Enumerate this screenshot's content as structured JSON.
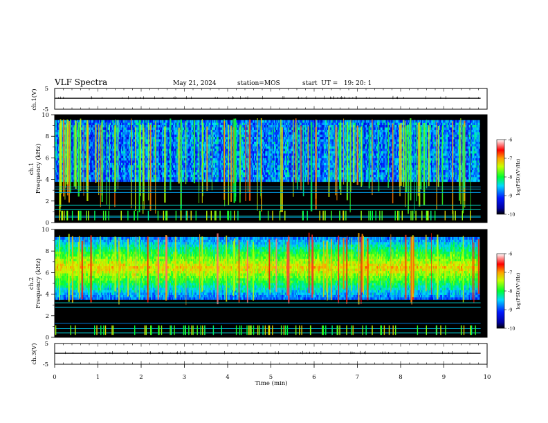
{
  "header": {
    "title": "VLF Spectra",
    "date": "May 21, 2024",
    "station": "station=MOS",
    "start_ut": "start  UT =   19: 20: 1"
  },
  "colors": {
    "background": "#ffffff",
    "spectrogram_floor": "#000000",
    "trace": "#000000"
  },
  "chart_data": [
    {
      "type": "line",
      "panel": "ch1-waveform",
      "ylabel": "ch.1(V)",
      "ylim": [
        -5,
        5
      ],
      "y_ticks": [
        "5",
        "-5"
      ],
      "xlim": [
        0,
        10
      ],
      "series": [
        {
          "values_approx": 0
        }
      ]
    },
    {
      "type": "heatmap",
      "panel": "ch1-spectrogram",
      "ylabel_top": "ch.1",
      "ylabel": "Frequency (kHz)",
      "ylim": [
        0,
        10
      ],
      "y_ticks": [
        "0",
        "2",
        "4",
        "6",
        "8",
        "10"
      ],
      "xlim": [
        0,
        10
      ],
      "data_end_min": 9.85,
      "band_khz": [
        3.8,
        9.5
      ],
      "sferic_density": "high",
      "narrowband_lines_khz": [
        0.5,
        0.6,
        1.2,
        1.6,
        2.8,
        3.1,
        3.3
      ],
      "colorbar": {
        "label": "log(PSD)(V²/Hz)",
        "range": [
          -10,
          -6
        ],
        "ticks": [
          "-6",
          "-7",
          "-8",
          "-9",
          "-10"
        ]
      }
    },
    {
      "type": "heatmap",
      "panel": "ch2-spectrogram",
      "ylabel_top": "ch.2",
      "ylabel": "Frequency (kHz)",
      "ylim": [
        0,
        10
      ],
      "y_ticks": [
        "0",
        "2",
        "4",
        "6",
        "8",
        "10"
      ],
      "xlim": [
        0,
        10
      ],
      "data_end_min": 9.85,
      "band_khz": [
        3.5,
        9.3
      ],
      "peak_khz": 6.5,
      "narrowband_lines_khz": [
        0.4,
        0.8,
        1.3,
        2.8,
        3.2
      ],
      "colorbar": {
        "label": "log(PSD)(V²/Hz)",
        "range": [
          -10,
          -6
        ],
        "ticks": [
          "-6",
          "-7",
          "-8",
          "-9",
          "-10"
        ]
      }
    },
    {
      "type": "line",
      "panel": "ch3-waveform",
      "ylabel": "ch.3(V)",
      "ylim": [
        -5,
        5
      ],
      "y_ticks": [
        "5",
        "-5"
      ],
      "xlim": [
        0,
        10
      ],
      "series": [
        {
          "values_approx": 0
        }
      ]
    }
  ],
  "x_axis": {
    "label": "Time (min)",
    "ticks": [
      "0",
      "1",
      "2",
      "3",
      "4",
      "5",
      "6",
      "7",
      "8",
      "9",
      "10"
    ]
  }
}
